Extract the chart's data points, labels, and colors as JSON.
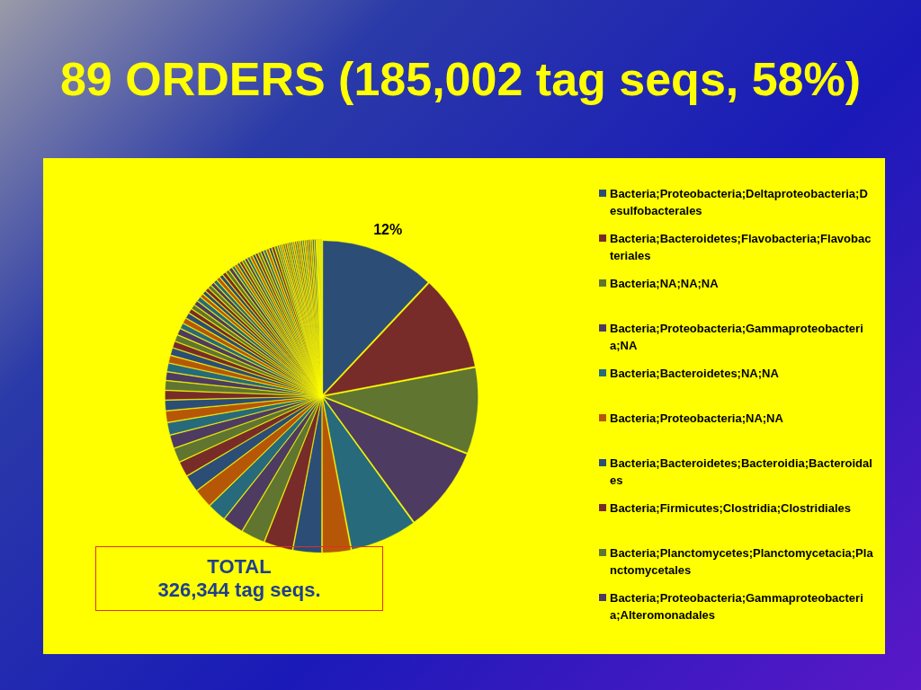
{
  "chart_data": {
    "type": "pie",
    "title": "89 ORDERS (185,002 tag seqs, 58%)",
    "categories": [
      "Bacteria;Proteobacteria;Deltaproteobacteria;Desulfobacterales",
      "Bacteria;Bacteroidetes;Flavobacteria;Flavobacteriales",
      "Bacteria;NA;NA;NA",
      "Bacteria;Proteobacteria;Gammaproteobacteria;NA",
      "Bacteria;Bacteroidetes;NA;NA",
      "Bacteria;Proteobacteria;NA;NA",
      "Bacteria;Bacteroidetes;Bacteroidia;Bacteroidales",
      "Bacteria;Firmicutes;Clostridia;Clostridiales",
      "Bacteria;Planctomycetes;Planctomycetacia;Planctomycetales",
      "Bacteria;Proteobacteria;Gammaproteobacteria;Alteromonadales",
      null,
      null,
      null,
      null,
      null,
      null,
      null,
      null,
      null,
      null,
      null,
      null,
      null,
      null,
      null,
      null,
      null,
      null,
      null,
      null,
      null,
      null,
      null,
      null,
      null,
      null,
      null,
      null,
      null,
      null,
      null,
      null,
      null,
      null,
      null,
      null,
      null,
      null,
      null,
      null,
      null,
      null,
      null,
      null,
      null,
      null,
      null,
      null,
      null,
      null,
      null,
      null,
      null,
      null,
      null,
      null,
      null,
      null,
      null,
      null,
      null,
      null,
      null,
      null,
      null,
      null,
      null,
      null,
      null,
      null,
      null,
      null,
      null,
      null,
      null,
      null,
      null,
      null,
      null
    ],
    "values": [
      12,
      10,
      9,
      9,
      7,
      3,
      3,
      3,
      2.5,
      2.2,
      2,
      2,
      1.8,
      1.6,
      1.5,
      1.4,
      1.3,
      1.2,
      1.1,
      1,
      1,
      0.9,
      0.9,
      0.8,
      0.8,
      0.7,
      0.7,
      0.7,
      0.6,
      0.6,
      0.6,
      0.5,
      0.5,
      0.5,
      0.5,
      0.4,
      0.4,
      0.4,
      0.4,
      0.4,
      0.4,
      0.4,
      0.4,
      0.4,
      0.4,
      0.4,
      0.3,
      0.3,
      0.3,
      0.3,
      0.3,
      0.3,
      0.3,
      0.3,
      0.3,
      0.3,
      0.3,
      0.3,
      0.3,
      0.3,
      0.3,
      0.3,
      0.3,
      0.2,
      0.2,
      0.2,
      0.2,
      0.2,
      0.2,
      0.2,
      0.2,
      0.2,
      0.2,
      0.2,
      0.2,
      0.2,
      0.2,
      0.2,
      0.2,
      0.2,
      0.2,
      0.2,
      0.2,
      0.1,
      0.1,
      0.1,
      0.1,
      0.1,
      0.1
    ],
    "colors": [
      "#2c4d75",
      "#772c2a",
      "#5f7530",
      "#4d3b62",
      "#276a7c",
      "#b65708",
      "#2c4d75",
      "#772c2a",
      "#5f7530",
      "#4d3b62",
      "#276a7c",
      "#b65708",
      "#2c4d75",
      "#772c2a",
      "#5f7530",
      "#4d3b62",
      "#276a7c",
      "#b65708",
      "#2c4d75",
      "#772c2a",
      "#5f7530",
      "#4d3b62",
      "#276a7c",
      "#b65708",
      "#2c4d75",
      "#772c2a",
      "#5f7530",
      "#4d3b62",
      "#276a7c",
      "#b65708",
      "#2c4d75",
      "#772c2a",
      "#5f7530",
      "#4d3b62",
      "#276a7c",
      "#b65708",
      "#2c4d75",
      "#772c2a",
      "#5f7530",
      "#4d3b62",
      "#276a7c",
      "#b65708",
      "#2c4d75",
      "#772c2a",
      "#5f7530",
      "#4d3b62",
      "#276a7c",
      "#b65708",
      "#2c4d75",
      "#772c2a",
      "#5f7530",
      "#4d3b62",
      "#276a7c",
      "#b65708",
      "#2c4d75",
      "#772c2a",
      "#5f7530",
      "#4d3b62",
      "#276a7c",
      "#b65708",
      "#2c4d75",
      "#772c2a",
      "#5f7530",
      "#4d3b62",
      "#276a7c",
      "#b65708",
      "#2c4d75",
      "#772c2a",
      "#5f7530",
      "#4d3b62",
      "#276a7c",
      "#b65708",
      "#2c4d75",
      "#772c2a",
      "#5f7530",
      "#4d3b62",
      "#276a7c",
      "#b65708",
      "#2c4d75",
      "#772c2a",
      "#5f7530",
      "#4d3b62",
      "#276a7c",
      "#b65708",
      "#2c4d75",
      "#772c2a",
      "#5f7530",
      "#4d3b62",
      "#276a7c"
    ],
    "value_labels": [
      "12%",
      null,
      null,
      null,
      null,
      null,
      null,
      null,
      null,
      null,
      null,
      null,
      null,
      null,
      null,
      null,
      null,
      null,
      null,
      null,
      null,
      null,
      null,
      null,
      null,
      null,
      null,
      null,
      null,
      null,
      null,
      null,
      null,
      null,
      null,
      null,
      null,
      null,
      null,
      null,
      null,
      null,
      null,
      null,
      null,
      null,
      null,
      null,
      null,
      null,
      null,
      null,
      null,
      null,
      null,
      null,
      null,
      null,
      null,
      null,
      null,
      null,
      null,
      null,
      null,
      null,
      null,
      null,
      null,
      null,
      null,
      null,
      null,
      null,
      null,
      null,
      null,
      null,
      null,
      null,
      null,
      null,
      null,
      null,
      null,
      null,
      null,
      null,
      null
    ],
    "legend": "right",
    "annotations": [
      "TOTAL\n326,344 tag seqs."
    ]
  }
}
